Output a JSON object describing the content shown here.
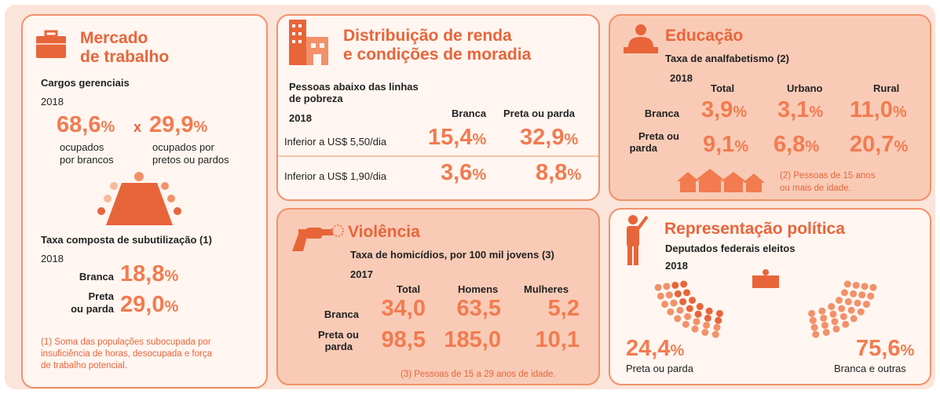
{
  "mercado": {
    "title": [
      "Mercado",
      "de trabalho"
    ],
    "subtitle": "Cargos gerenciais",
    "year": "2018",
    "brancos": {
      "value": "68,6",
      "unit": "%"
    },
    "sep": "x",
    "pretos": {
      "value": "29,9",
      "unit": "%"
    },
    "label_brancos": [
      "ocupados",
      "por brancos"
    ],
    "label_pretos": [
      "ocupados por",
      "pretos ou pardos"
    ],
    "taxa_title": "Taxa composta de subutilização (1)",
    "taxa_year": "2018",
    "rows": [
      {
        "label": [
          "Branca"
        ],
        "value": "18,8",
        "unit": "%"
      },
      {
        "label": [
          "Preta",
          "ou parda"
        ],
        "value": "29,0",
        "unit": "%"
      }
    ],
    "note": [
      "(1) Soma das populações subocupada por",
      "insuficiência de horas, desocupada e força",
      "de trabalho potencial."
    ]
  },
  "renda": {
    "title": [
      "Distribuição de renda",
      "e condições de moradia"
    ],
    "subtitle": [
      "Pessoas abaixo das linhas",
      "de pobreza"
    ],
    "year": "2018",
    "columns": [
      "Branca",
      "Preta ou parda"
    ],
    "rows": [
      {
        "label": "Inferior a US$ 5,50/dia",
        "values": [
          "15,4",
          "32,9"
        ],
        "unit": "%"
      },
      {
        "label": "Inferior a US$ 1,90/dia",
        "values": [
          "3,6",
          "8,8"
        ],
        "unit": "%"
      }
    ]
  },
  "educacao": {
    "title": "Educação",
    "subtitle": "Taxa de analfabetismo (2)",
    "year": "2018",
    "columns": [
      "Total",
      "Urbano",
      "Rural"
    ],
    "rows": [
      {
        "label": [
          "Branca"
        ],
        "values": [
          "3,9",
          "3,1",
          "11,0"
        ],
        "unit": "%"
      },
      {
        "label": [
          "Preta ou",
          "parda"
        ],
        "values": [
          "9,1",
          "6,8",
          "20,7"
        ],
        "unit": "%"
      }
    ],
    "note": [
      "(2) Pessoas de 15 anos",
      "ou mais de idade."
    ]
  },
  "violencia": {
    "title": "Violência",
    "subtitle": "Taxa de homicídios, por 100 mil jovens (3)",
    "year": "2017",
    "columns": [
      "Total",
      "Homens",
      "Mulheres"
    ],
    "rows": [
      {
        "label": [
          "Branca"
        ],
        "values": [
          "34,0",
          "63,5",
          "5,2"
        ]
      },
      {
        "label": [
          "Preta ou",
          "parda"
        ],
        "values": [
          "98,5",
          "185,0",
          "10,1"
        ]
      }
    ],
    "note": "(3) Pessoas de 15 a 29 anos de idade."
  },
  "politica": {
    "title": "Representação política",
    "subtitle": "Deputados federais eleitos",
    "year": "2018",
    "preta": {
      "value": "24,4",
      "unit": "%",
      "label": "Preta ou parda"
    },
    "branca": {
      "value": "75,6",
      "unit": "%",
      "label": "Branca e outras"
    }
  }
}
